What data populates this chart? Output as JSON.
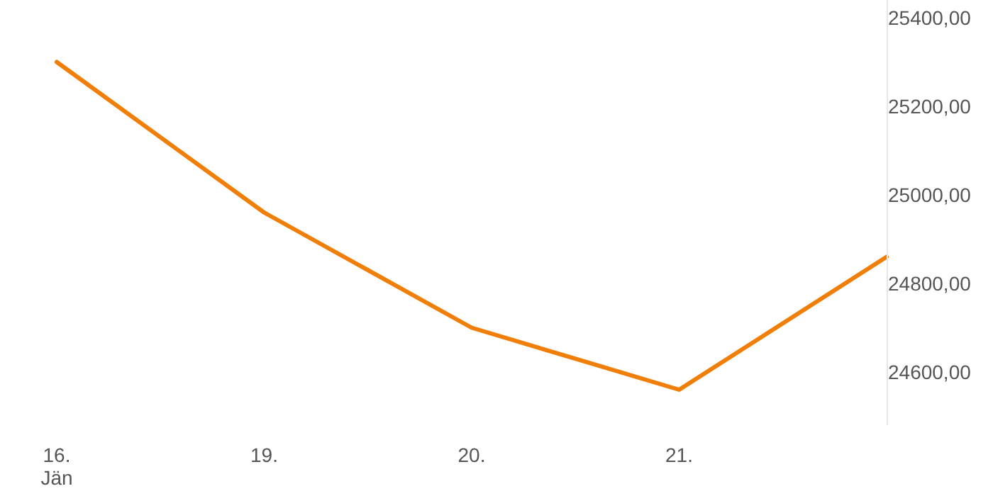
{
  "chart_data": {
    "type": "line",
    "categories": [
      "16. Jän",
      "19.",
      "20.",
      "21.",
      null
    ],
    "series": [
      {
        "color": "#f07f09",
        "values": [
          25300,
          24960,
          24700,
          24560,
          24860
        ]
      }
    ],
    "yticks": [
      {
        "value": 24600,
        "label": "24600,00"
      },
      {
        "value": 24800,
        "label": "24800,00"
      },
      {
        "value": 25000,
        "label": "25000,00"
      },
      {
        "value": 25200,
        "label": "25200,00"
      },
      {
        "value": 25400,
        "label": "25400,00"
      }
    ],
    "ylim": [
      24480,
      25440
    ],
    "grid": false,
    "marker": "none",
    "line_style": "solid"
  }
}
